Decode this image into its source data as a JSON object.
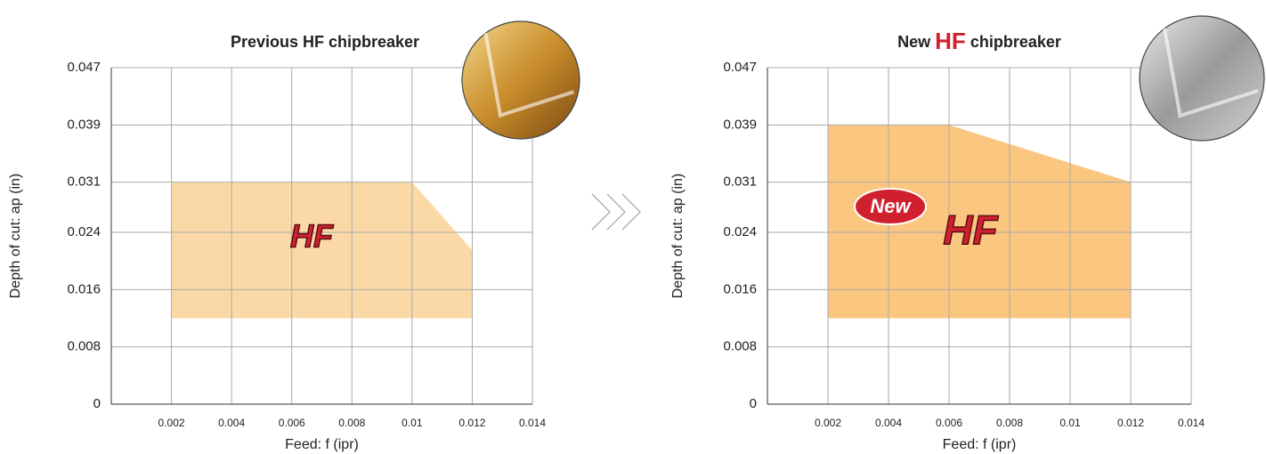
{
  "chart_data": [
    {
      "type": "area",
      "title": "Previous HF chipbreaker",
      "xlabel": "Feed: f (ipr)",
      "ylabel": "Depth of cut: ap (in)",
      "xlim": [
        0,
        0.014
      ],
      "ylim": [
        0,
        0.047
      ],
      "xticks": [
        0.002,
        0.004,
        0.006,
        0.008,
        0.01,
        0.012,
        0.014
      ],
      "yticks": [
        0,
        0.008,
        0.016,
        0.024,
        0.031,
        0.039,
        0.047
      ],
      "x": [
        0.002,
        0.002,
        0.01,
        0.012,
        0.012
      ],
      "values": [
        0.012,
        0.031,
        0.031,
        0.0215,
        0.012
      ],
      "color": "#fbd9a6",
      "grid": true,
      "logo": "HF"
    },
    {
      "type": "area",
      "title": [
        "New",
        "HF",
        "chipbreaker"
      ],
      "xlabel": "Feed: f (ipr)",
      "ylabel": "Depth of cut: ap (in)",
      "xlim": [
        0,
        0.014
      ],
      "ylim": [
        0,
        0.047
      ],
      "xticks": [
        0.002,
        0.004,
        0.006,
        0.008,
        0.01,
        0.012,
        0.014
      ],
      "yticks": [
        0,
        0.008,
        0.016,
        0.024,
        0.031,
        0.039,
        0.047
      ],
      "x": [
        0.002,
        0.002,
        0.006,
        0.012,
        0.012
      ],
      "values": [
        0.012,
        0.039,
        0.039,
        0.031,
        0.012
      ],
      "color": "#fbc680",
      "grid": true,
      "logo": "HF",
      "badge": "New"
    }
  ]
}
